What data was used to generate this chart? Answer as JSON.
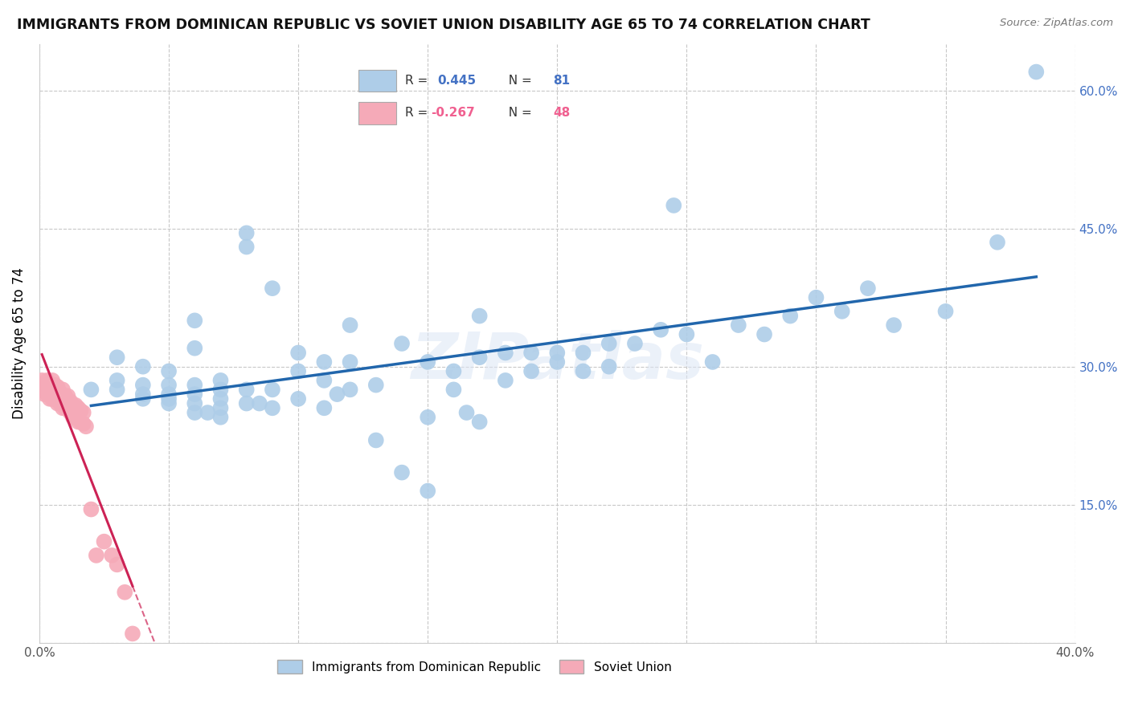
{
  "title": "IMMIGRANTS FROM DOMINICAN REPUBLIC VS SOVIET UNION DISABILITY AGE 65 TO 74 CORRELATION CHART",
  "source": "Source: ZipAtlas.com",
  "ylabel": "Disability Age 65 to 74",
  "xlim": [
    0.0,
    0.4
  ],
  "ylim": [
    0.0,
    0.65
  ],
  "xticks": [
    0.0,
    0.05,
    0.1,
    0.15,
    0.2,
    0.25,
    0.3,
    0.35,
    0.4
  ],
  "yticks": [
    0.0,
    0.15,
    0.3,
    0.45,
    0.6
  ],
  "blue_R": 0.445,
  "blue_N": 81,
  "pink_R": -0.267,
  "pink_N": 48,
  "blue_color": "#aecde8",
  "pink_color": "#f5aab8",
  "blue_line_color": "#2166ac",
  "pink_line_color": "#cc2255",
  "watermark": "ZIPatlas",
  "blue_scatter_x": [
    0.02,
    0.03,
    0.03,
    0.03,
    0.04,
    0.04,
    0.04,
    0.04,
    0.05,
    0.05,
    0.05,
    0.05,
    0.05,
    0.06,
    0.06,
    0.06,
    0.06,
    0.06,
    0.06,
    0.065,
    0.07,
    0.07,
    0.07,
    0.07,
    0.07,
    0.08,
    0.08,
    0.08,
    0.08,
    0.085,
    0.09,
    0.09,
    0.09,
    0.1,
    0.1,
    0.1,
    0.11,
    0.11,
    0.11,
    0.115,
    0.12,
    0.12,
    0.12,
    0.13,
    0.13,
    0.14,
    0.14,
    0.15,
    0.15,
    0.15,
    0.16,
    0.16,
    0.165,
    0.17,
    0.17,
    0.17,
    0.18,
    0.18,
    0.19,
    0.19,
    0.2,
    0.2,
    0.21,
    0.21,
    0.22,
    0.22,
    0.23,
    0.24,
    0.245,
    0.25,
    0.26,
    0.27,
    0.28,
    0.29,
    0.3,
    0.31,
    0.32,
    0.33,
    0.35,
    0.37,
    0.385
  ],
  "blue_scatter_y": [
    0.275,
    0.275,
    0.285,
    0.31,
    0.265,
    0.27,
    0.28,
    0.3,
    0.26,
    0.265,
    0.27,
    0.28,
    0.295,
    0.25,
    0.26,
    0.27,
    0.28,
    0.32,
    0.35,
    0.25,
    0.245,
    0.255,
    0.265,
    0.275,
    0.285,
    0.26,
    0.275,
    0.43,
    0.445,
    0.26,
    0.255,
    0.275,
    0.385,
    0.265,
    0.295,
    0.315,
    0.255,
    0.285,
    0.305,
    0.27,
    0.275,
    0.305,
    0.345,
    0.22,
    0.28,
    0.185,
    0.325,
    0.165,
    0.245,
    0.305,
    0.275,
    0.295,
    0.25,
    0.31,
    0.355,
    0.24,
    0.285,
    0.315,
    0.295,
    0.315,
    0.305,
    0.315,
    0.295,
    0.315,
    0.3,
    0.325,
    0.325,
    0.34,
    0.475,
    0.335,
    0.305,
    0.345,
    0.335,
    0.355,
    0.375,
    0.36,
    0.385,
    0.345,
    0.36,
    0.435,
    0.62
  ],
  "pink_scatter_x": [
    0.001,
    0.001,
    0.002,
    0.002,
    0.003,
    0.003,
    0.003,
    0.004,
    0.004,
    0.004,
    0.005,
    0.005,
    0.005,
    0.006,
    0.006,
    0.006,
    0.007,
    0.007,
    0.007,
    0.008,
    0.008,
    0.009,
    0.009,
    0.009,
    0.01,
    0.01,
    0.011,
    0.011,
    0.012,
    0.012,
    0.013,
    0.013,
    0.014,
    0.014,
    0.015,
    0.015,
    0.016,
    0.016,
    0.017,
    0.017,
    0.018,
    0.02,
    0.022,
    0.025,
    0.028,
    0.03,
    0.033,
    0.036
  ],
  "pink_scatter_y": [
    0.275,
    0.285,
    0.27,
    0.28,
    0.27,
    0.275,
    0.285,
    0.265,
    0.275,
    0.28,
    0.265,
    0.275,
    0.285,
    0.265,
    0.275,
    0.28,
    0.26,
    0.27,
    0.278,
    0.26,
    0.272,
    0.255,
    0.265,
    0.275,
    0.255,
    0.268,
    0.255,
    0.268,
    0.25,
    0.262,
    0.245,
    0.258,
    0.245,
    0.258,
    0.24,
    0.255,
    0.24,
    0.252,
    0.238,
    0.25,
    0.235,
    0.145,
    0.095,
    0.11,
    0.095,
    0.085,
    0.055,
    0.01
  ]
}
